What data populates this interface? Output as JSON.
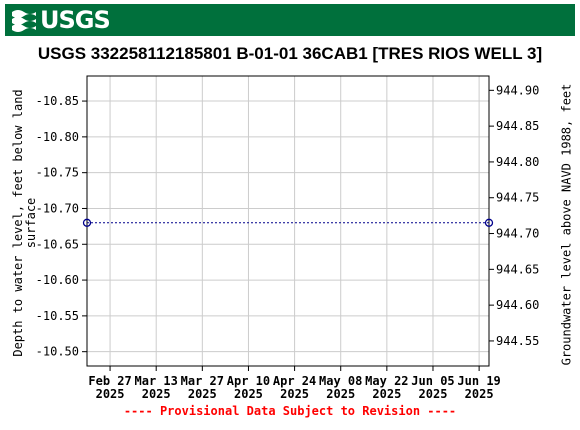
{
  "header": {
    "agency": "USGS",
    "logo_icon": "usgs-wave-icon",
    "banner_color": "#00703c"
  },
  "chart_data": {
    "type": "line",
    "title": "USGS 332258112185801 B-01-01 36CAB1 [TRES RIOS WELL 3]",
    "ylabel_left": "Depth to water level, feet below land\nsurface",
    "ylabel_right": "Groundwater level above NAVD 1988, feet",
    "left_axis": {
      "range": [
        -10.48,
        -10.885
      ],
      "ticks": [
        -10.85,
        -10.8,
        -10.75,
        -10.7,
        -10.65,
        -10.6,
        -10.55,
        -10.5
      ],
      "tick_labels": [
        "-10.85",
        "-10.80",
        "-10.75",
        "-10.70",
        "-10.65",
        "-10.60",
        "-10.55",
        "-10.50"
      ]
    },
    "right_axis": {
      "range": [
        944.515,
        944.92
      ],
      "ticks": [
        944.55,
        944.6,
        944.65,
        944.7,
        944.75,
        944.8,
        944.85,
        944.9
      ],
      "tick_labels": [
        "944.55",
        "944.60",
        "944.65",
        "944.70",
        "944.75",
        "944.80",
        "944.85",
        "944.90"
      ]
    },
    "x_axis": {
      "range": [
        "2025-02-20",
        "2025-06-22"
      ],
      "ticks": [
        "2025-02-27",
        "2025-03-13",
        "2025-03-27",
        "2025-04-10",
        "2025-04-24",
        "2025-05-08",
        "2025-05-22",
        "2025-06-05",
        "2025-06-19"
      ],
      "tick_labels": [
        {
          "line1": "Feb 27",
          "line2": "2025"
        },
        {
          "line1": "Mar 13",
          "line2": "2025"
        },
        {
          "line1": "Mar 27",
          "line2": "2025"
        },
        {
          "line1": "Apr 10",
          "line2": "2025"
        },
        {
          "line1": "Apr 24",
          "line2": "2025"
        },
        {
          "line1": "May 08",
          "line2": "2025"
        },
        {
          "line1": "May 22",
          "line2": "2025"
        },
        {
          "line1": "Jun 05",
          "line2": "2025"
        },
        {
          "line1": "Jun 19",
          "line2": "2025"
        }
      ]
    },
    "series": [
      {
        "values": [
          {
            "x": "2025-02-20",
            "y": -10.68
          },
          {
            "x": "2025-06-22",
            "y": -10.68
          }
        ],
        "line_color": "#00008b",
        "line_style": "dotted",
        "marker": "open-circle"
      }
    ],
    "grid": true
  },
  "footer": {
    "provisional_note": "---- Provisional Data Subject to Revision ----"
  }
}
